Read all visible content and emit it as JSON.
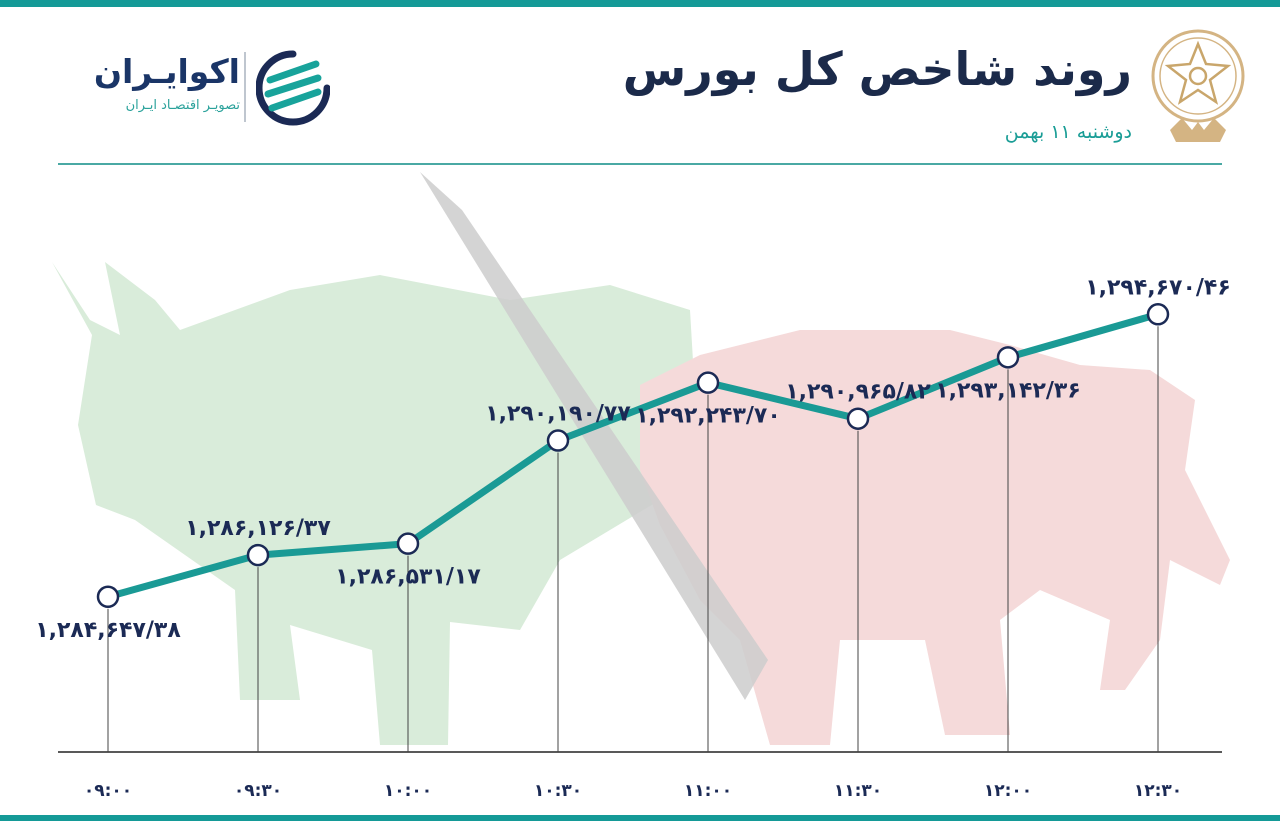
{
  "header": {
    "title": "روند شاخص کل بورس",
    "subtitle": "دوشنبه ۱۱ بهمن"
  },
  "brand": {
    "name": "اکوایـران",
    "tagline": "تصویـر اقتصـاد ایـران",
    "logo_icon": "ekoiran-logo-icon"
  },
  "emblem_icon": "tehran-stock-exchange-emblem-icon",
  "colors": {
    "accent": "#149a97",
    "line": "#1a9a95",
    "text": "#1b2a55",
    "bull": "#d8ecd9",
    "bear": "#f4d8d8",
    "diagonal": "#c9c9c9"
  },
  "chart_data": {
    "type": "line",
    "title": "روند شاخص کل بورس",
    "categories": [
      "۰۹:۰۰",
      "۰۹:۳۰",
      "۱۰:۰۰",
      "۱۰:۳۰",
      "۱۱:۰۰",
      "۱۱:۳۰",
      "۱۲:۰۰",
      "۱۲:۳۰"
    ],
    "values": [
      1284647.38,
      1286126.37,
      1286531.17,
      1290190.77,
      1292243.7,
      1290965.82,
      1293142.36,
      1294670.46
    ],
    "data_labels": [
      "۱,۲۸۴,۶۴۷/۳۸",
      "۱,۲۸۶,۱۲۶/۳۷",
      "۱,۲۸۶,۵۳۱/۱۷",
      "۱,۲۹۰,۱۹۰/۷۷",
      "۱,۲۹۲,۲۴۳/۷۰",
      "۱,۲۹۰,۹۶۵/۸۲",
      "۱,۲۹۳,۱۴۲/۳۶",
      "۱,۲۹۴,۶۷۰/۴۶"
    ],
    "label_positions": [
      "below",
      "above",
      "below",
      "above",
      "below",
      "above",
      "below",
      "above"
    ],
    "grid": false,
    "legend": "none"
  }
}
